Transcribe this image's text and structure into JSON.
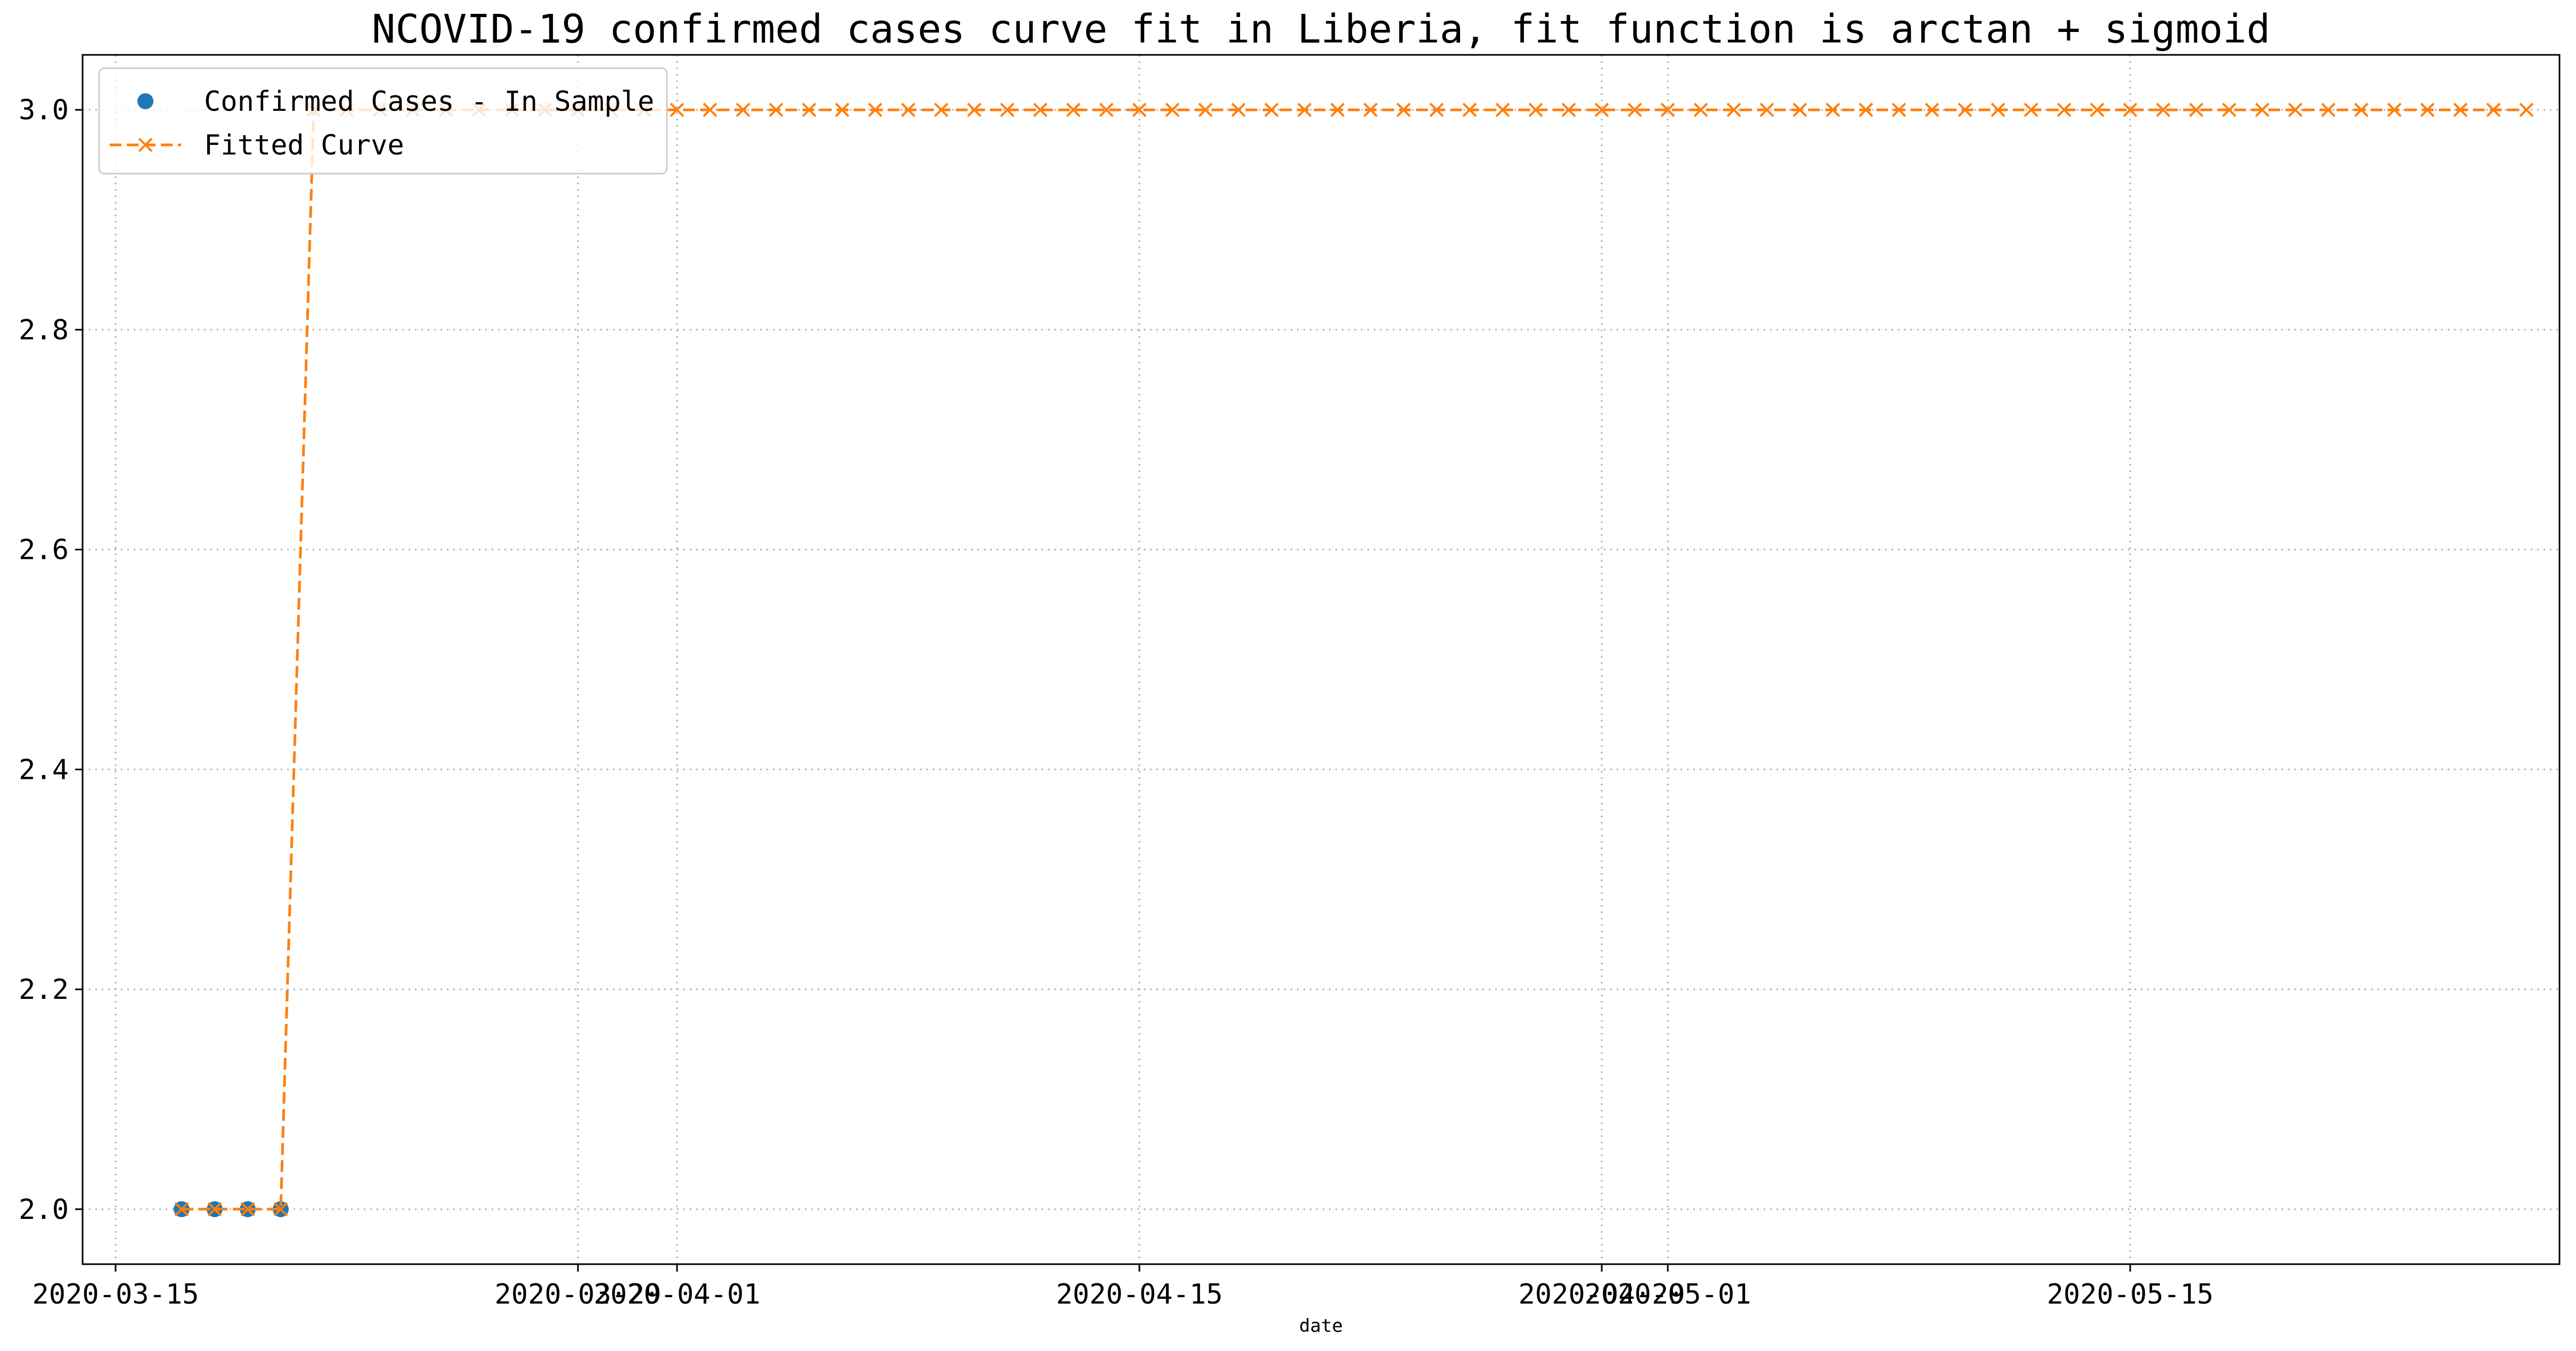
{
  "chart_data": {
    "type": "line",
    "title": "NCOVID-19 confirmed cases curve fit in Liberia, fit function is arctan + sigmoid",
    "xlabel": "date",
    "ylabel": "",
    "x_type": "date",
    "xlim": [
      "2020-03-14",
      "2020-05-28"
    ],
    "ylim": [
      1.95,
      3.05
    ],
    "x_ticks": [
      {
        "value": "2020-03-15",
        "label": "2020-03-15"
      },
      {
        "value": "2020-03-29",
        "label": "2020-03-29"
      },
      {
        "value": "2020-04-01",
        "label": "2020-04-01"
      },
      {
        "value": "2020-04-15",
        "label": "2020-04-15"
      },
      {
        "value": "2020-04-29",
        "label": "2020-04-29"
      },
      {
        "value": "2020-05-01",
        "label": "2020-05-01"
      },
      {
        "value": "2020-05-15",
        "label": "2020-05-15"
      }
    ],
    "y_ticks": [
      {
        "value": 2.0,
        "label": "2.0"
      },
      {
        "value": 2.2,
        "label": "2.2"
      },
      {
        "value": 2.4,
        "label": "2.4"
      },
      {
        "value": 2.6,
        "label": "2.6"
      },
      {
        "value": 2.8,
        "label": "2.8"
      },
      {
        "value": 3.0,
        "label": "3.0"
      }
    ],
    "grid": true,
    "legend_position": "upper-left",
    "series": [
      {
        "name": "Confirmed Cases - In Sample",
        "style": "markers",
        "marker": "circle",
        "color": "#1f77b4",
        "x": [
          "2020-03-17",
          "2020-03-18",
          "2020-03-19",
          "2020-03-20",
          "2020-03-21",
          "2020-03-22",
          "2020-03-23",
          "2020-03-24",
          "2020-03-25",
          "2020-03-26",
          "2020-03-27",
          "2020-03-28",
          "2020-03-29",
          "2020-03-30"
        ],
        "y": [
          2,
          2,
          2,
          2,
          3,
          3,
          3,
          3,
          3,
          3,
          3,
          3,
          3,
          3
        ]
      },
      {
        "name": "Fitted Curve",
        "style": "dashed-line-x-markers",
        "marker": "x",
        "color": "#ff7f0e",
        "x_start": "2020-03-17",
        "x_end": "2020-05-27",
        "y": [
          2,
          2,
          2,
          2,
          3,
          3,
          3,
          3,
          3,
          3,
          3,
          3,
          3,
          3,
          3,
          3,
          3,
          3,
          3,
          3,
          3,
          3,
          3,
          3,
          3,
          3,
          3,
          3,
          3,
          3,
          3,
          3,
          3,
          3,
          3,
          3,
          3,
          3,
          3,
          3,
          3,
          3,
          3,
          3,
          3,
          3,
          3,
          3,
          3,
          3,
          3,
          3,
          3,
          3,
          3,
          3,
          3,
          3,
          3,
          3,
          3,
          3,
          3,
          3,
          3,
          3,
          3,
          3,
          3,
          3,
          3,
          3
        ]
      }
    ]
  }
}
